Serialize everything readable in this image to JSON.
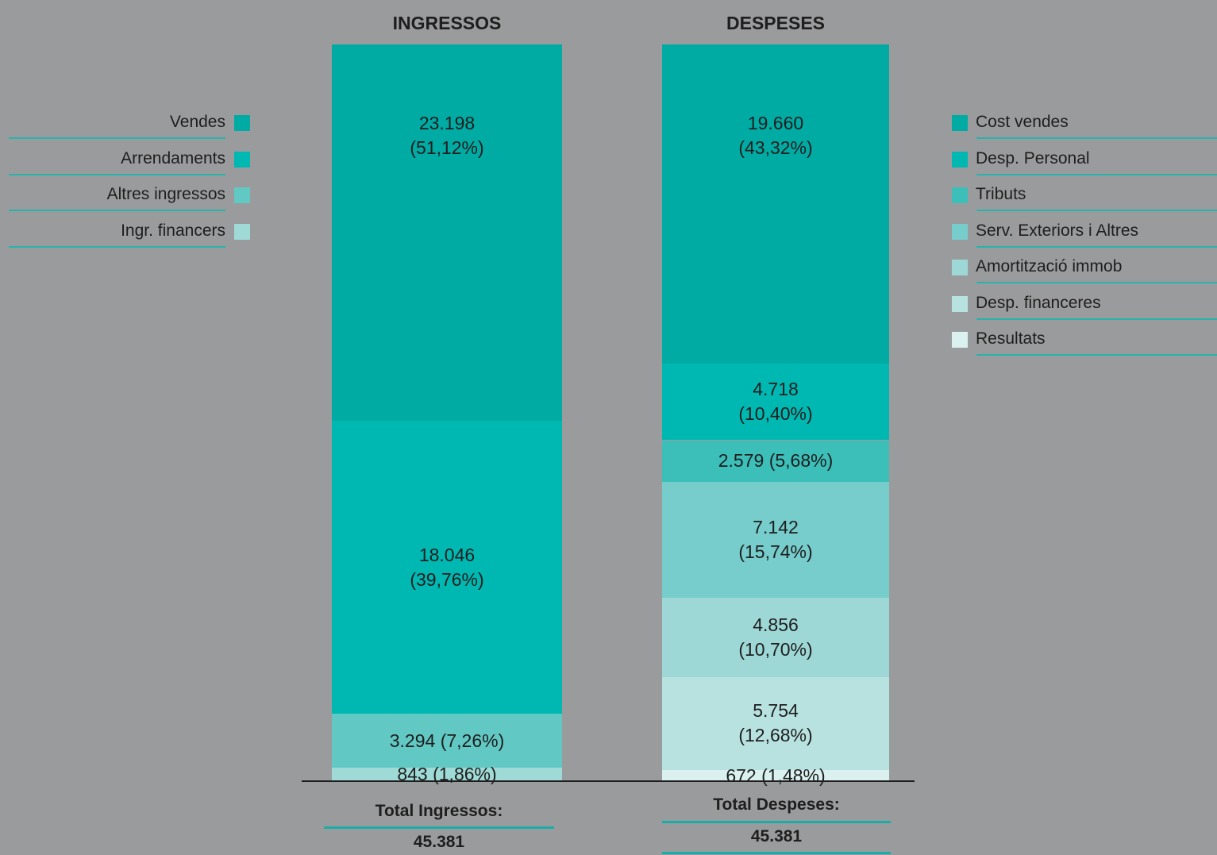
{
  "chart_data": {
    "type": "bar",
    "stacked": true,
    "orientation": "vertical",
    "grid": false,
    "columns": [
      {
        "title": "INGRESSOS",
        "legend_side": "left",
        "total_label": "Total Ingressos:",
        "total_value": "45.381",
        "segments": [
          {
            "name": "Vendes",
            "value": 23198,
            "label": "23.198\n(51,12%)",
            "color": "#00aba4"
          },
          {
            "name": "Arrendaments",
            "value": 18046,
            "label": "18.046\n(39,76%)",
            "color": "#00b8b2"
          },
          {
            "name": "Altres ingressos",
            "value": 3294,
            "label": "3.294 (7,26%)",
            "color": "#62c8c3"
          },
          {
            "name": "Ingr. financers",
            "value": 843,
            "label": "843 (1,86%)",
            "color": "#9fdad6"
          }
        ]
      },
      {
        "title": "DESPESES",
        "legend_side": "right",
        "total_label": "Total Despeses:",
        "total_value": "45.381",
        "segments": [
          {
            "name": "Cost vendes",
            "value": 19660,
            "label": "19.660\n(43,32%)",
            "color": "#00aba4"
          },
          {
            "name": "Desp. Personal",
            "value": 4718,
            "label": "4.718\n(10,40%)",
            "color": "#00b8b2"
          },
          {
            "name": "Tributs",
            "value": 2579,
            "label": "2.579 (5,68%)",
            "color": "#3cbfb9"
          },
          {
            "name": "Serv. Exteriors i Altres",
            "value": 7142,
            "label": "7.142\n(15,74%)",
            "color": "#76cdcb"
          },
          {
            "name": "Amortització immob",
            "value": 4856,
            "label": "4.856\n(10,70%)",
            "color": "#9ed8d6"
          },
          {
            "name": "Desp. financeres",
            "value": 5754,
            "label": "5.754\n(12,68%)",
            "color": "#b8e2e0"
          },
          {
            "name": "Resultats",
            "value": 672,
            "label": "672 (1,48%)",
            "color": "#daf1f0"
          }
        ]
      }
    ]
  }
}
